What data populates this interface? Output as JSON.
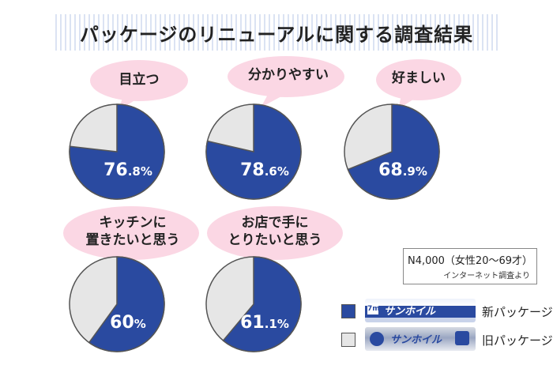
{
  "title": "パッケージのリニューアルに関する調査結果",
  "colors": {
    "new": "#2a4aa0",
    "old": "#e6e6e6",
    "bubble": "#fbd7e4",
    "outline": "#555555"
  },
  "chart_data": [
    {
      "type": "pie",
      "label": "目立つ",
      "values": [
        76.8,
        23.2
      ],
      "value_int": "76",
      "value_dec": ".8%"
    },
    {
      "type": "pie",
      "label": "分かりやすい",
      "values": [
        78.6,
        21.4
      ],
      "value_int": "78",
      "value_dec": ".6%"
    },
    {
      "type": "pie",
      "label": "好ましい",
      "values": [
        68.9,
        31.1
      ],
      "value_int": "68",
      "value_dec": ".9%"
    },
    {
      "type": "pie",
      "label": "キッチンに\n置きたいと思う",
      "values": [
        60,
        40
      ],
      "value_int": "60",
      "value_dec": "%"
    },
    {
      "type": "pie",
      "label": "お店で手に\nとりたいと思う",
      "values": [
        61.1,
        38.9
      ],
      "value_int": "61",
      "value_dec": ".1%"
    }
  ],
  "note": {
    "sample": "N4,000（女性20～69才）",
    "source": "インターネット調査より"
  },
  "legend": [
    {
      "label": "新パッケージ",
      "color": "#2a4aa0",
      "package_name": "サンホイル",
      "package_badge": "7m"
    },
    {
      "label": "旧パッケージ",
      "color": "#e6e6e6",
      "package_name": "サンホイル",
      "package_badge": ""
    }
  ]
}
